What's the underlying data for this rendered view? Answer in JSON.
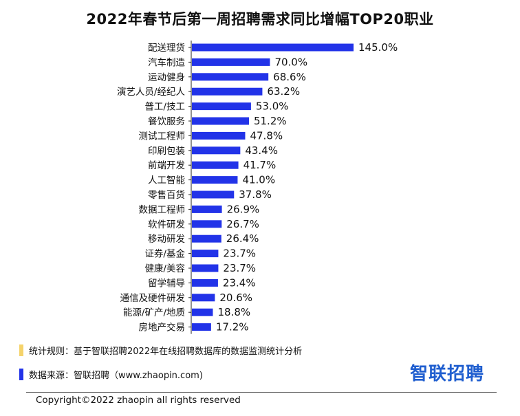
{
  "title": "2022年春节后第一周招聘需求同比增幅TOP20职业",
  "chart_data": {
    "type": "bar",
    "orientation": "horizontal",
    "title": "2022年春节后第一周招聘需求同比增幅TOP20职业",
    "categories": [
      "配送理货",
      "汽车制造",
      "运动健身",
      "演艺人员/经纪人",
      "普工/技工",
      "餐饮服务",
      "测试工程师",
      "印刷包装",
      "前端开发",
      "人工智能",
      "零售百货",
      "数据工程师",
      "软件研发",
      "移动研发",
      "证券/基金",
      "健康/美容",
      "留学辅导",
      "通信及硬件研发",
      "能源/矿产/地质",
      "房地产交易"
    ],
    "values": [
      145.0,
      70.0,
      68.6,
      63.2,
      53.0,
      51.2,
      47.8,
      43.4,
      41.7,
      41.0,
      37.8,
      26.9,
      26.7,
      26.4,
      23.7,
      23.7,
      23.4,
      20.6,
      18.8,
      17.2
    ],
    "value_labels": [
      "145.0%",
      "70.0%",
      "68.6%",
      "63.2%",
      "53.0%",
      "51.2%",
      "47.8%",
      "43.4%",
      "41.7%",
      "41.0%",
      "37.8%",
      "26.9%",
      "26.7%",
      "26.4%",
      "23.7%",
      "23.7%",
      "23.4%",
      "20.6%",
      "18.8%",
      "17.2%"
    ],
    "unit": "%",
    "bar_color": "#2233e8",
    "xlim": [
      0,
      145
    ]
  },
  "notes": {
    "rule_text": "统计规则：基于智联招聘2022年在线招聘数据库的数据监测统计分析",
    "rule_color": "#f5d36b",
    "source_text": "数据来源：智联招聘（www.zhaopin.com)",
    "source_color": "#2233e8"
  },
  "brand": {
    "logo_text": "智联招聘",
    "color": "#1f5ecf"
  },
  "copyright": "Copyright©2022 zhaopin all rights reserved"
}
